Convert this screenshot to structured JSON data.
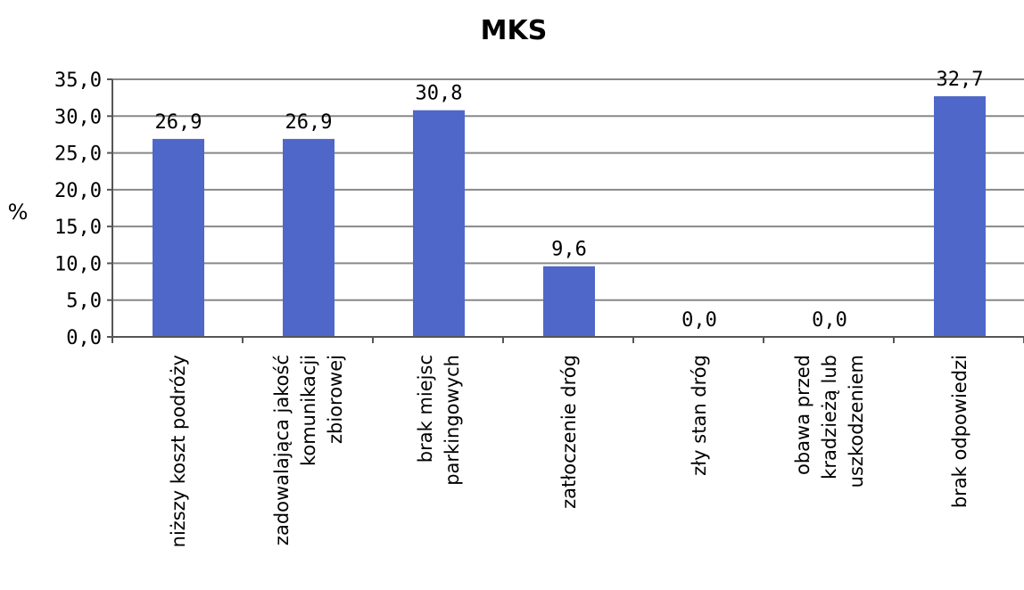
{
  "chart_data": {
    "type": "bar",
    "title": "MKS",
    "ylabel": "%",
    "xlabel": "",
    "ylim": [
      0,
      35
    ],
    "ytick_step": 5,
    "ytick_labels": [
      "0,0",
      "5,0",
      "10,0",
      "15,0",
      "20,0",
      "25,0",
      "30,0",
      "35,0"
    ],
    "grid": true,
    "legend": "none",
    "categories": [
      [
        "niższy koszt podróży"
      ],
      [
        "zadowalająca jakość",
        "komunikacji",
        "zbiorowej"
      ],
      [
        "brak miejsc",
        "parkingowych"
      ],
      [
        "zatłoczenie dróg"
      ],
      [
        "zły stan dróg"
      ],
      [
        "obawa przed",
        "kradzieżą lub",
        "uszkodzeniem"
      ],
      [
        "brak odpowiedzi"
      ]
    ],
    "values": [
      26.9,
      26.9,
      30.8,
      9.6,
      0.0,
      0.0,
      32.7
    ],
    "data_labels": [
      "26,9",
      "26,9",
      "30,8",
      "9,6",
      "0,0",
      "0,0",
      "32,7"
    ],
    "colors": {
      "bar": "#4F67C8",
      "grid": "#888888",
      "axis": "#555555"
    }
  }
}
